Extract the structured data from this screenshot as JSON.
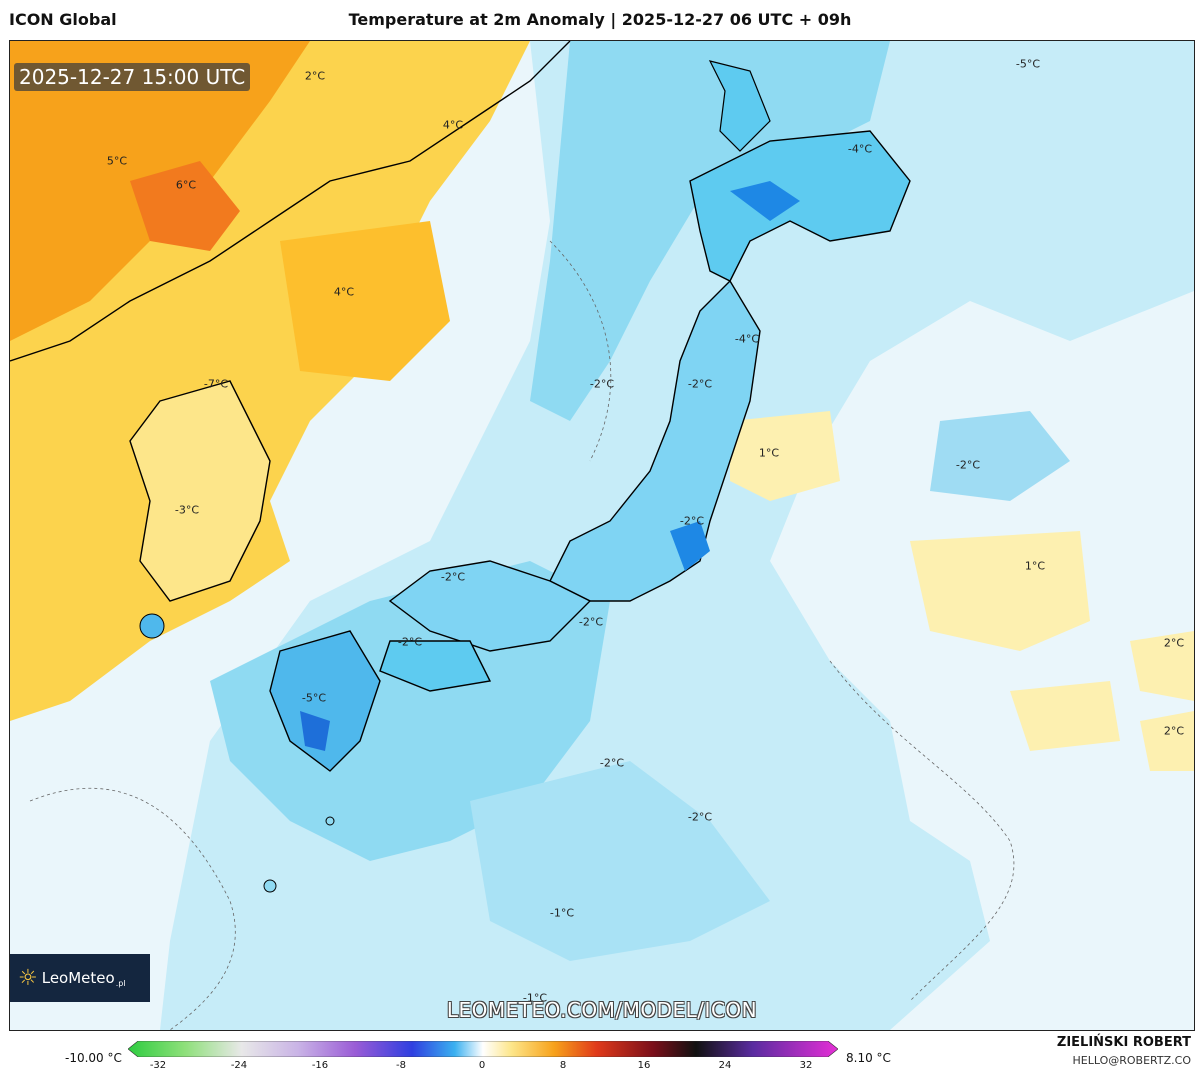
{
  "header": {
    "model": "ICON Global",
    "title": "Temperature at 2m Anomaly | 2025-12-27 06 UTC + 09h"
  },
  "map": {
    "timestamp": "2025-12-27 15:00 UTC",
    "watermark": "LEOMETEO.COM/MODEL/ICON",
    "logo": {
      "brand": "LeoMeteo",
      "tld": ".pl"
    },
    "isotherm_labels": [
      "2°C",
      "4°C",
      "5°C",
      "6°C",
      "4°C",
      "-4°C",
      "-5°C",
      "-4°C",
      "-2°C",
      "-2°C",
      "1°C",
      "-2°C",
      "-7°C",
      "-3°C",
      "-2°C",
      "-2°C",
      "-2°C",
      "1°C",
      "2°C",
      "2°C",
      "-5°C",
      "-2°C",
      "-2°C",
      "-2°C",
      "-1°C",
      "-1°C"
    ]
  },
  "colorbar": {
    "min_label": "-10.00 °C",
    "max_label": "8.10 °C",
    "ticks": [
      "-32",
      "-24",
      "-16",
      "-8",
      "0",
      "8",
      "16",
      "24",
      "32"
    ]
  },
  "credit": {
    "name": "ZIELIŃSKI ROBERT",
    "email": "HELLO@ROBERTZ.CO"
  },
  "colors": {
    "warm_orange": "#f7a21b",
    "warm_yellow": "#fcd34d",
    "pale_yellow": "#fdf0b0",
    "cold_light": "#b8e6f5",
    "cold_mid": "#5ecbf0",
    "cold_deep": "#1e88e5"
  }
}
